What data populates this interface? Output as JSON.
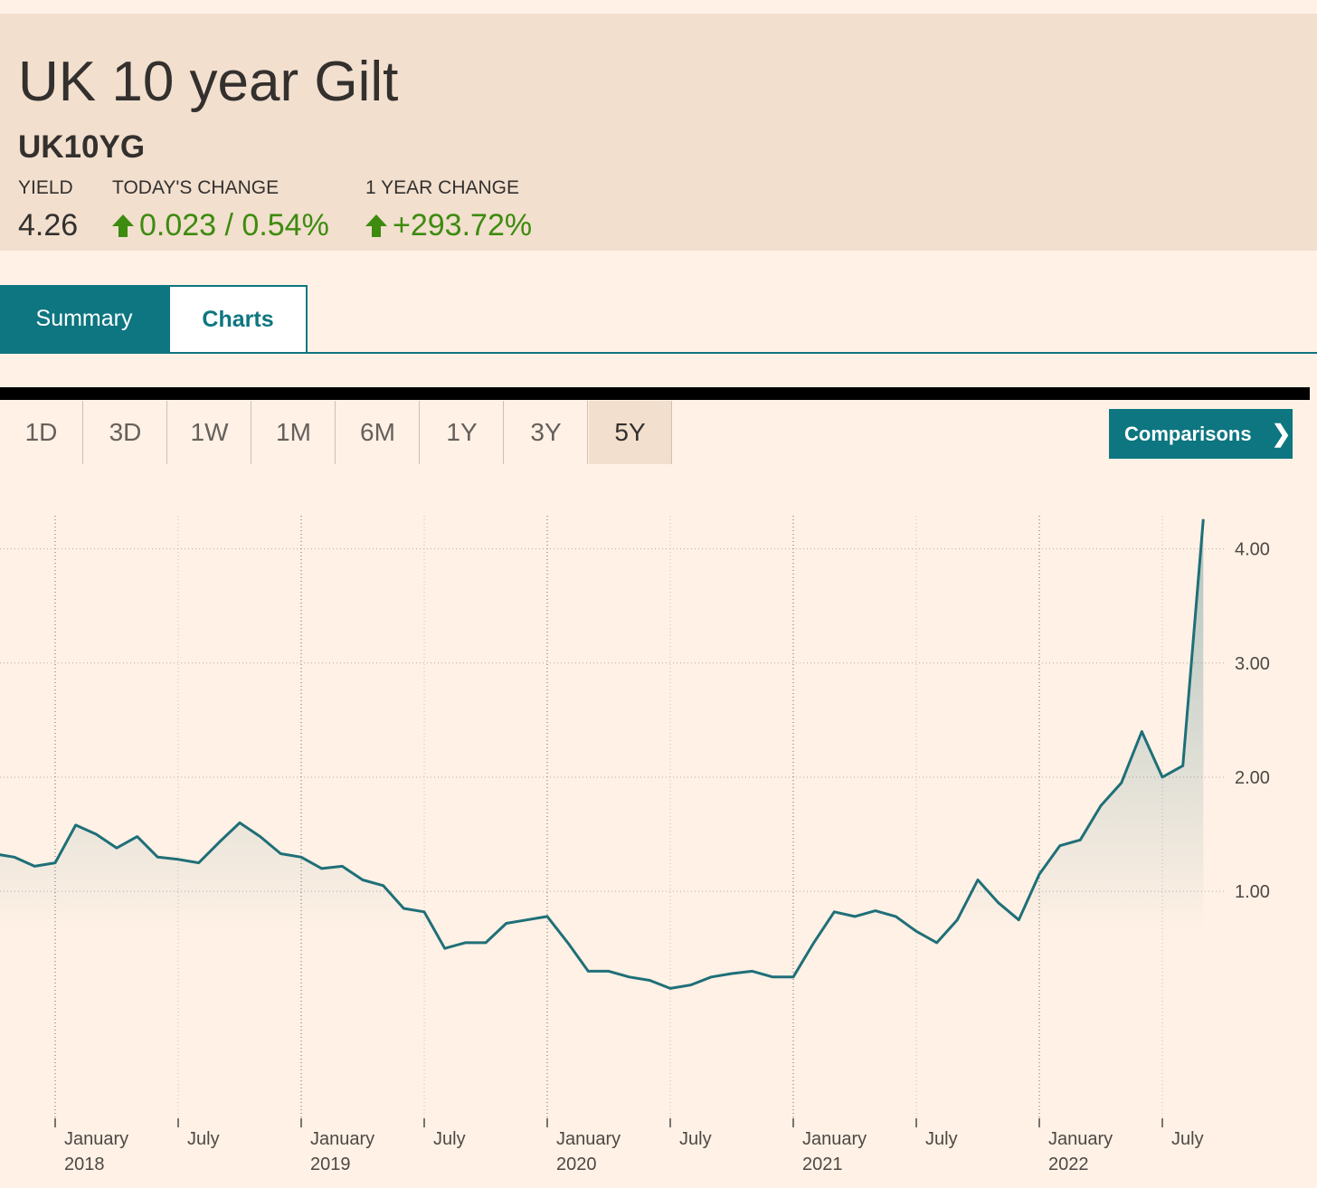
{
  "header": {
    "title": "UK 10 year Gilt",
    "symbol": "UK10YG",
    "stats": [
      {
        "label": "YIELD",
        "value": "4.26"
      },
      {
        "label": "TODAY'S CHANGE",
        "value": "0.023 / 0.54%"
      },
      {
        "label": "1 YEAR CHANGE",
        "value": "+293.72%"
      }
    ]
  },
  "tabs": [
    "Summary",
    "Charts"
  ],
  "ranges": [
    "1D",
    "3D",
    "1W",
    "1M",
    "6M",
    "1Y",
    "3Y",
    "5Y"
  ],
  "comparisons": "Comparisons",
  "chart_data": {
    "type": "line",
    "color": "#1f6f78",
    "x": [
      "2017-10",
      "2017-11",
      "2017-12",
      "2018-01",
      "2018-02",
      "2018-03",
      "2018-04",
      "2018-05",
      "2018-06",
      "2018-07",
      "2018-08",
      "2018-09",
      "2018-10",
      "2018-11",
      "2018-12",
      "2019-01",
      "2019-02",
      "2019-03",
      "2019-04",
      "2019-05",
      "2019-06",
      "2019-07",
      "2019-08",
      "2019-09",
      "2019-10",
      "2019-11",
      "2019-12",
      "2020-01",
      "2020-02",
      "2020-03",
      "2020-04",
      "2020-05",
      "2020-06",
      "2020-07",
      "2020-08",
      "2020-09",
      "2020-10",
      "2020-11",
      "2020-12",
      "2021-01",
      "2021-02",
      "2021-03",
      "2021-04",
      "2021-05",
      "2021-06",
      "2021-07",
      "2021-08",
      "2021-09",
      "2021-10",
      "2021-11",
      "2021-12",
      "2022-01",
      "2022-02",
      "2022-03",
      "2022-04",
      "2022-05",
      "2022-06",
      "2022-07",
      "2022-08",
      "2022-09"
    ],
    "values": [
      1.33,
      1.3,
      1.22,
      1.25,
      1.58,
      1.5,
      1.38,
      1.48,
      1.3,
      1.28,
      1.25,
      1.43,
      1.6,
      1.48,
      1.33,
      1.3,
      1.2,
      1.22,
      1.1,
      1.05,
      0.85,
      0.82,
      0.5,
      0.55,
      0.55,
      0.72,
      0.75,
      0.78,
      0.55,
      0.3,
      0.3,
      0.25,
      0.22,
      0.15,
      0.18,
      0.25,
      0.28,
      0.3,
      0.25,
      0.25,
      0.55,
      0.82,
      0.78,
      0.83,
      0.78,
      0.65,
      0.55,
      0.75,
      1.1,
      0.9,
      0.75,
      1.15,
      1.4,
      1.45,
      1.75,
      1.95,
      2.4,
      2.0,
      2.1,
      4.26
    ],
    "xlim": [
      "2017-10",
      "2022-10"
    ],
    "xticks": [
      {
        "value": "2018-01",
        "label": "January 2018"
      },
      {
        "value": "2018-07",
        "label": "July"
      },
      {
        "value": "2019-01",
        "label": "January 2019"
      },
      {
        "value": "2019-07",
        "label": "July"
      },
      {
        "value": "2020-01",
        "label": "January 2020"
      },
      {
        "value": "2020-07",
        "label": "July"
      },
      {
        "value": "2021-01",
        "label": "January 2021"
      },
      {
        "value": "2021-07",
        "label": "July"
      },
      {
        "value": "2022-01",
        "label": "January 2022"
      },
      {
        "value": "2022-07",
        "label": "July"
      }
    ],
    "ylim": [
      -1.02,
      4.29
    ],
    "yticks": [
      {
        "value": 1,
        "label": "1.00"
      },
      {
        "value": 2,
        "label": "2.00"
      },
      {
        "value": 3,
        "label": "3.00"
      },
      {
        "value": 4,
        "label": "4.00"
      }
    ],
    "grid": true
  }
}
